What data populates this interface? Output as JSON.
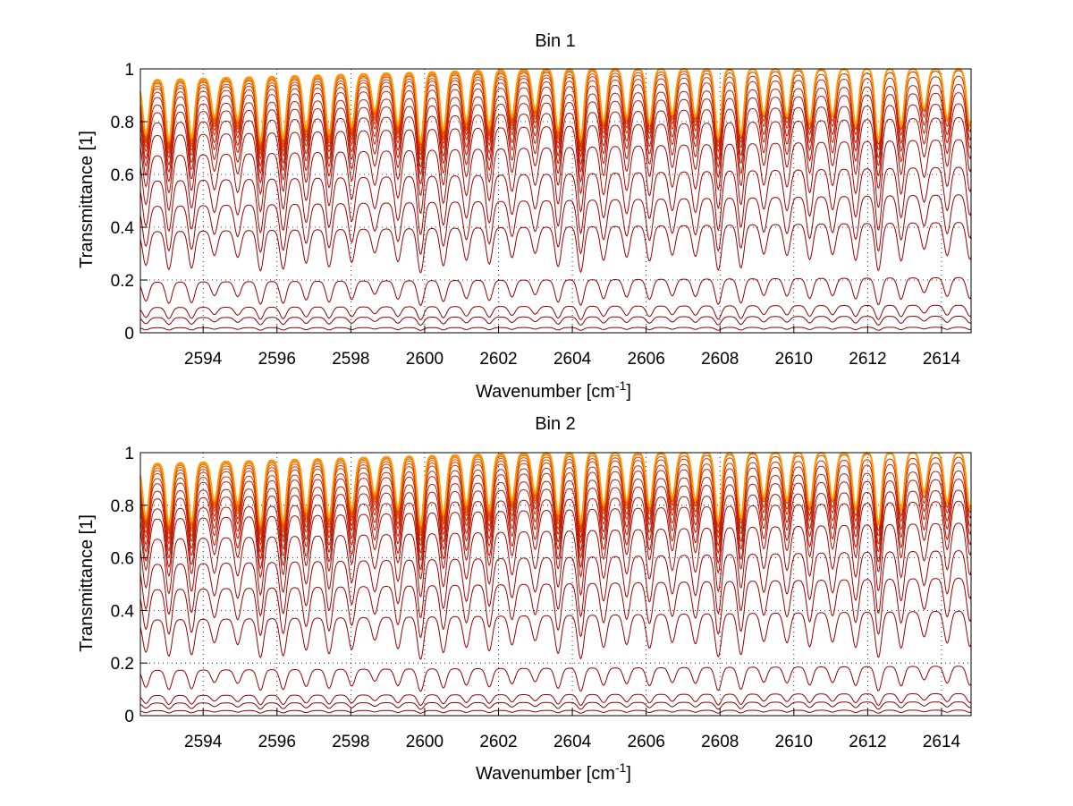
{
  "chart_data": [
    {
      "type": "line",
      "title": "Bin 1",
      "xlabel_base": "Wavenumber [cm",
      "xlabel_sup": "-1",
      "xlabel_end": "]",
      "ylabel": "Transmittance [1]",
      "xlim": [
        2592.3,
        2614.8
      ],
      "ylim": [
        0,
        1
      ],
      "xticks": [
        "2594",
        "2596",
        "2598",
        "2600",
        "2602",
        "2604",
        "2606",
        "2608",
        "2610",
        "2612",
        "2614"
      ],
      "yticks": [
        "0",
        "0.2",
        "0.4",
        "0.6",
        "0.8",
        "1"
      ],
      "grid": true,
      "line_spacing_cm-1": 0.62,
      "series_continuum_levels": [
        0.0,
        0.02,
        0.06,
        0.1,
        0.2,
        0.4,
        0.5,
        0.6,
        0.7,
        0.78,
        0.83,
        0.87,
        0.9,
        0.93,
        0.95,
        0.965,
        0.975,
        0.985,
        0.99,
        0.995,
        0.998,
        1.0
      ],
      "series_colors": [
        "#8b0000",
        "#8b0000",
        "#8b0000",
        "#900000",
        "#950000",
        "#9a0000",
        "#a00000",
        "#a50000",
        "#ab0500",
        "#b00a00",
        "#b51000",
        "#ba1500",
        "#c01a00",
        "#c52000",
        "#cc2a00",
        "#d23500",
        "#d94000",
        "#e04e00",
        "#e75e00",
        "#ee7000",
        "#f58300",
        "#ff9a00"
      ]
    },
    {
      "type": "line",
      "title": "Bin 2",
      "xlabel_base": "Wavenumber [cm",
      "xlabel_sup": "-1",
      "xlabel_end": "]",
      "ylabel": "Transmittance [1]",
      "xlim": [
        2592.3,
        2614.8
      ],
      "ylim": [
        0,
        1
      ],
      "xticks": [
        "2594",
        "2596",
        "2598",
        "2600",
        "2602",
        "2604",
        "2606",
        "2608",
        "2610",
        "2612",
        "2614"
      ],
      "yticks": [
        "0",
        "0.2",
        "0.4",
        "0.6",
        "0.8",
        "1"
      ],
      "grid": true,
      "line_spacing_cm-1": 0.62,
      "series_continuum_levels": [
        0.0,
        0.02,
        0.05,
        0.08,
        0.18,
        0.38,
        0.5,
        0.6,
        0.7,
        0.78,
        0.82,
        0.86,
        0.89,
        0.92,
        0.94,
        0.96,
        0.972,
        0.982,
        0.99,
        0.995,
        0.998,
        1.0
      ],
      "series_colors": [
        "#8b0000",
        "#8b0000",
        "#8b0000",
        "#900000",
        "#950000",
        "#9a0000",
        "#a00000",
        "#a50000",
        "#ab0500",
        "#b00a00",
        "#b51000",
        "#ba1500",
        "#c01a00",
        "#c52000",
        "#cc2a00",
        "#d23500",
        "#d94000",
        "#e04e00",
        "#e75e00",
        "#ee7000",
        "#f58300",
        "#ff9a00"
      ]
    }
  ]
}
